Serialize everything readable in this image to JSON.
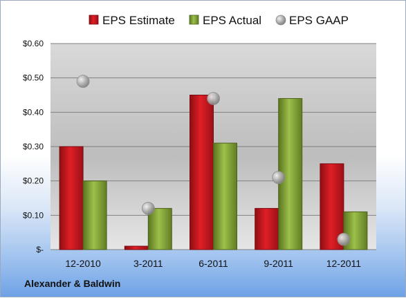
{
  "chart_data": {
    "type": "bar",
    "categories": [
      "12-2010",
      "3-2011",
      "6-2011",
      "9-2011",
      "12-2011"
    ],
    "series": [
      {
        "name": "EPS Estimate",
        "kind": "bar",
        "color": "#c0141c",
        "values": [
          0.3,
          0.01,
          0.45,
          0.12,
          0.25
        ]
      },
      {
        "name": "EPS Actual",
        "kind": "bar",
        "color": "#7a9a2e",
        "values": [
          0.2,
          0.12,
          0.31,
          0.44,
          0.11
        ]
      },
      {
        "name": "EPS GAAP",
        "kind": "scatter",
        "color": "#a8a8a8",
        "values": [
          0.49,
          0.12,
          0.44,
          0.21,
          0.03
        ]
      }
    ],
    "ylim": [
      0,
      0.6
    ],
    "yticks": [
      0,
      0.1,
      0.2,
      0.3,
      0.4,
      0.5,
      0.6
    ],
    "ytick_labels": [
      "$-",
      "$0.10",
      "$0.20",
      "$0.30",
      "$0.40",
      "$0.50",
      "$0.60"
    ],
    "grid": true,
    "legend_position": "top"
  },
  "footer": {
    "company": "Alexander & Baldwin"
  }
}
